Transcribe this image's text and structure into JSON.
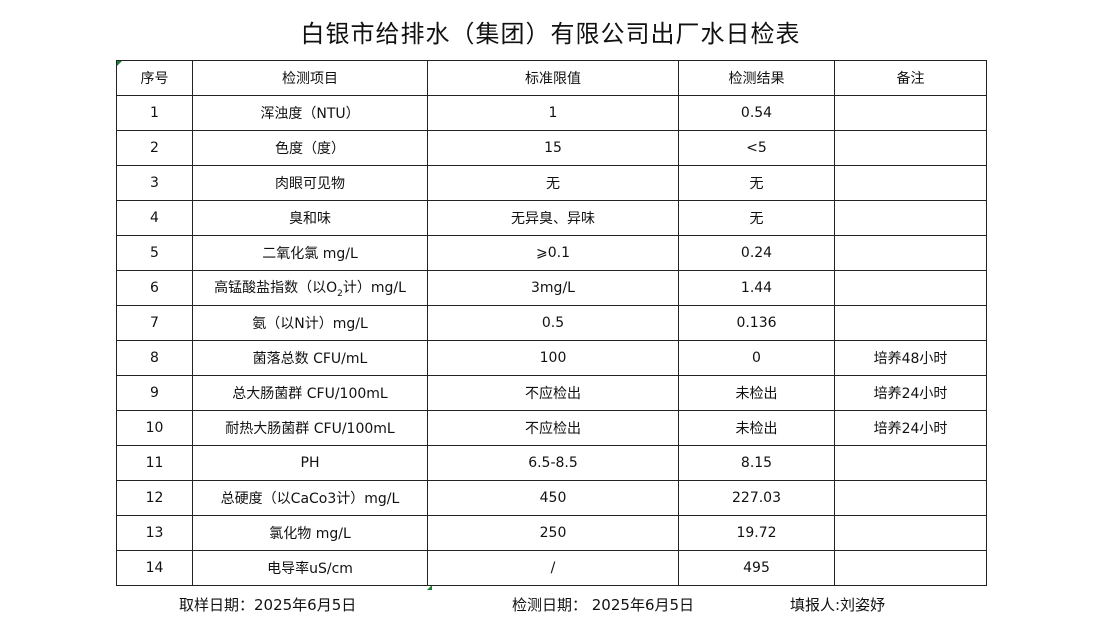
{
  "title": "白银市给排水（集团）有限公司出厂水日检表",
  "headers": [
    "序号",
    "检测项目",
    "标准限值",
    "检测结果",
    "备注"
  ],
  "rows": [
    {
      "no": "1",
      "item": "浑浊度（NTU）",
      "limit": "1",
      "result": "0.54",
      "note": ""
    },
    {
      "no": "2",
      "item": "色度（度）",
      "limit": "15",
      "result": "<5",
      "note": ""
    },
    {
      "no": "3",
      "item": "肉眼可见物",
      "limit": "无",
      "result": "无",
      "note": ""
    },
    {
      "no": "4",
      "item": "臭和味",
      "limit": "无异臭、异味",
      "result": "无",
      "note": ""
    },
    {
      "no": "5",
      "item": "二氧化氯 mg/L",
      "limit": "⩾0.1",
      "result": "0.24",
      "note": ""
    },
    {
      "no": "6",
      "item": "高锰酸盐指数（以O",
      "item_sub": "2",
      "item_after": "计）mg/L",
      "limit": "3mg/L",
      "result": "1.44",
      "note": ""
    },
    {
      "no": "7",
      "item": "氨（以N计）mg/L",
      "limit": "0.5",
      "result": "0.136",
      "note": ""
    },
    {
      "no": "8",
      "item": "菌落总数 CFU/mL",
      "limit": "100",
      "result": "0",
      "note": "培养48小时"
    },
    {
      "no": "9",
      "item": "总大肠菌群 CFU/100mL",
      "limit": "不应检出",
      "result": "未检出",
      "note": "培养24小时"
    },
    {
      "no": "10",
      "item": "耐热大肠菌群 CFU/100mL",
      "limit": "不应检出",
      "result": "未检出",
      "note": "培养24小时"
    },
    {
      "no": "11",
      "item": "PH",
      "limit": "6.5-8.5",
      "result": "8.15",
      "note": ""
    },
    {
      "no": "12",
      "item": "总硬度（以CaCo3计）mg/L",
      "limit": "450",
      "result": "227.03",
      "note": ""
    },
    {
      "no": "13",
      "item": "氯化物 mg/L",
      "limit": "250",
      "result": "19.72",
      "note": ""
    },
    {
      "no": "14",
      "item": "电导率uS/cm",
      "limit": "/",
      "result": "495",
      "note": ""
    }
  ],
  "footer": {
    "sampling_date": "取样日期：2025年6月5日",
    "test_date": "检测日期： 2025年6月5日",
    "reporter": "填报人:刘姿妤"
  }
}
